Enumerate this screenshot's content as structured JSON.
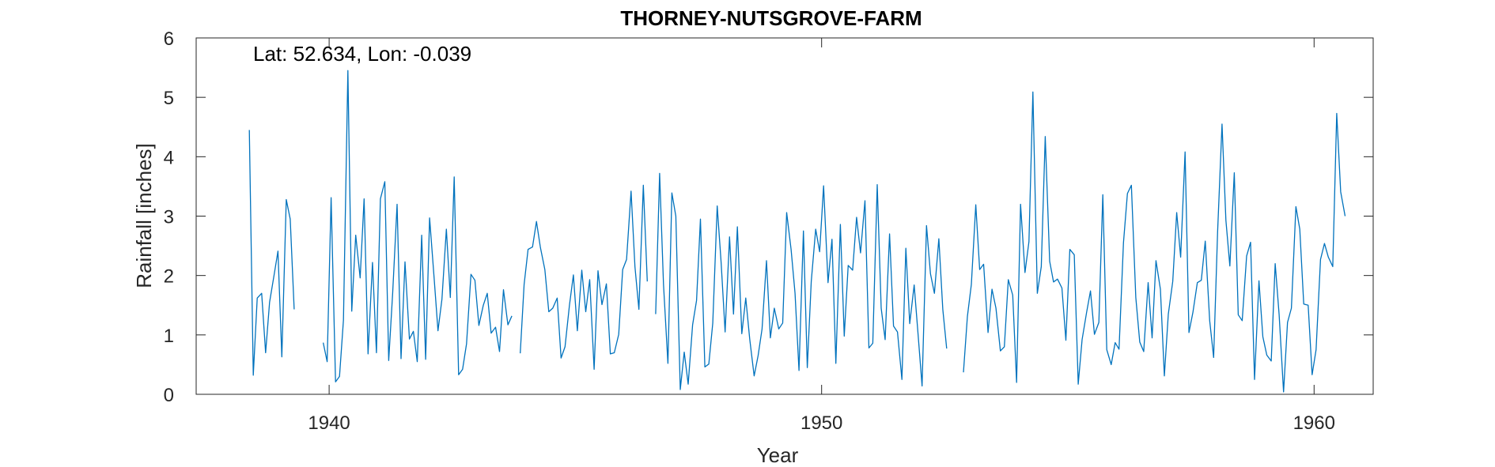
{
  "chart_data": {
    "type": "line",
    "title": "THORNEY-NUTSGROVE-FARM",
    "annotation": "Lat: 52.634, Lon: -0.039",
    "xlabel": "Year",
    "ylabel": "Rainfall [inches]",
    "xlim": [
      1937.3,
      1961.2
    ],
    "ylim": [
      0,
      6
    ],
    "xticks": [
      1940,
      1950,
      1960
    ],
    "yticks": [
      0,
      1,
      2,
      3,
      4,
      5,
      6
    ],
    "grid": false,
    "line_color": "#0072BD",
    "series": [
      {
        "segments": [
          [
            [
              1938.38,
              4.45
            ],
            [
              1938.46,
              0.32
            ],
            [
              1938.54,
              1.62
            ],
            [
              1938.63,
              1.7
            ],
            [
              1938.71,
              0.7
            ],
            [
              1938.79,
              1.55
            ],
            [
              1938.88,
              2.0
            ],
            [
              1938.96,
              2.41
            ],
            [
              1939.04,
              0.63
            ],
            [
              1939.13,
              3.28
            ],
            [
              1939.21,
              2.95
            ],
            [
              1939.29,
              1.43
            ]
          ],
          [
            [
              1939.88,
              0.87
            ],
            [
              1939.96,
              0.55
            ],
            [
              1940.04,
              3.31
            ],
            [
              1940.13,
              0.21
            ],
            [
              1940.21,
              0.3
            ],
            [
              1940.29,
              1.25
            ],
            [
              1940.38,
              5.45
            ],
            [
              1940.46,
              1.4
            ],
            [
              1940.54,
              2.68
            ],
            [
              1940.63,
              1.96
            ],
            [
              1940.71,
              3.29
            ],
            [
              1940.79,
              0.68
            ],
            [
              1940.88,
              2.22
            ],
            [
              1940.96,
              0.7
            ],
            [
              1941.04,
              3.29
            ],
            [
              1941.13,
              3.58
            ],
            [
              1941.21,
              0.57
            ],
            [
              1941.29,
              1.7
            ],
            [
              1941.38,
              3.2
            ],
            [
              1941.46,
              0.6
            ],
            [
              1941.54,
              2.23
            ],
            [
              1941.63,
              0.93
            ],
            [
              1941.71,
              1.06
            ],
            [
              1941.79,
              0.55
            ],
            [
              1941.88,
              2.68
            ],
            [
              1941.96,
              0.59
            ],
            [
              1942.04,
              2.97
            ],
            [
              1942.13,
              1.98
            ],
            [
              1942.21,
              1.07
            ],
            [
              1942.29,
              1.6
            ],
            [
              1942.38,
              2.78
            ],
            [
              1942.46,
              1.63
            ],
            [
              1942.54,
              3.66
            ],
            [
              1942.63,
              0.33
            ],
            [
              1942.71,
              0.42
            ],
            [
              1942.79,
              0.85
            ],
            [
              1942.88,
              2.02
            ],
            [
              1942.96,
              1.92
            ],
            [
              1943.04,
              1.16
            ],
            [
              1943.13,
              1.5
            ],
            [
              1943.21,
              1.7
            ],
            [
              1943.29,
              1.03
            ],
            [
              1943.38,
              1.13
            ],
            [
              1943.46,
              0.72
            ],
            [
              1943.54,
              1.76
            ],
            [
              1943.63,
              1.17
            ],
            [
              1943.71,
              1.32
            ]
          ],
          [
            [
              1943.88,
              0.69
            ],
            [
              1943.96,
              1.85
            ],
            [
              1944.04,
              2.44
            ],
            [
              1944.13,
              2.48
            ],
            [
              1944.21,
              2.91
            ],
            [
              1944.29,
              2.47
            ],
            [
              1944.38,
              2.1
            ],
            [
              1944.46,
              1.39
            ],
            [
              1944.54,
              1.45
            ],
            [
              1944.63,
              1.62
            ],
            [
              1944.71,
              0.61
            ],
            [
              1944.79,
              0.8
            ],
            [
              1944.88,
              1.5
            ],
            [
              1944.96,
              2.01
            ],
            [
              1945.04,
              1.07
            ],
            [
              1945.13,
              2.09
            ],
            [
              1945.21,
              1.39
            ],
            [
              1945.29,
              1.93
            ],
            [
              1945.38,
              0.42
            ],
            [
              1945.46,
              2.08
            ],
            [
              1945.54,
              1.51
            ],
            [
              1945.63,
              1.86
            ],
            [
              1945.71,
              0.68
            ],
            [
              1945.79,
              0.7
            ],
            [
              1945.88,
              1.01
            ],
            [
              1945.96,
              2.1
            ],
            [
              1946.04,
              2.27
            ],
            [
              1946.13,
              3.42
            ],
            [
              1946.21,
              2.15
            ],
            [
              1946.29,
              1.43
            ],
            [
              1946.38,
              3.52
            ],
            [
              1946.46,
              1.9
            ]
          ],
          [
            [
              1946.63,
              1.35
            ],
            [
              1946.71,
              3.72
            ],
            [
              1946.79,
              1.85
            ],
            [
              1946.88,
              0.52
            ],
            [
              1946.96,
              3.39
            ],
            [
              1947.04,
              3.0
            ],
            [
              1947.13,
              0.08
            ],
            [
              1947.21,
              0.71
            ],
            [
              1947.29,
              0.17
            ],
            [
              1947.38,
              1.17
            ],
            [
              1947.46,
              1.58
            ],
            [
              1947.54,
              2.95
            ],
            [
              1947.63,
              0.46
            ],
            [
              1947.71,
              0.51
            ],
            [
              1947.79,
              1.2
            ],
            [
              1947.88,
              3.17
            ],
            [
              1947.96,
              2.21
            ],
            [
              1948.04,
              1.05
            ],
            [
              1948.13,
              2.65
            ],
            [
              1948.21,
              1.35
            ],
            [
              1948.29,
              2.82
            ],
            [
              1948.38,
              1.02
            ],
            [
              1948.46,
              1.62
            ],
            [
              1948.54,
              0.93
            ],
            [
              1948.63,
              0.31
            ],
            [
              1948.71,
              0.65
            ],
            [
              1948.79,
              1.1
            ],
            [
              1948.88,
              2.25
            ],
            [
              1948.96,
              0.95
            ],
            [
              1949.04,
              1.45
            ],
            [
              1949.13,
              1.1
            ],
            [
              1949.21,
              1.2
            ],
            [
              1949.29,
              3.06
            ],
            [
              1949.38,
              2.44
            ],
            [
              1949.46,
              1.7
            ],
            [
              1949.54,
              0.4
            ],
            [
              1949.63,
              2.75
            ],
            [
              1949.71,
              0.45
            ],
            [
              1949.79,
              1.9
            ],
            [
              1949.88,
              2.78
            ],
            [
              1949.96,
              2.4
            ],
            [
              1950.04,
              3.51
            ],
            [
              1950.13,
              1.88
            ],
            [
              1950.21,
              2.61
            ],
            [
              1950.29,
              0.52
            ],
            [
              1950.38,
              2.86
            ],
            [
              1950.46,
              0.98
            ],
            [
              1950.54,
              2.17
            ],
            [
              1950.63,
              2.09
            ],
            [
              1950.71,
              2.98
            ],
            [
              1950.79,
              2.38
            ],
            [
              1950.88,
              3.26
            ],
            [
              1950.96,
              0.78
            ],
            [
              1951.04,
              0.86
            ],
            [
              1951.13,
              3.53
            ],
            [
              1951.21,
              1.45
            ],
            [
              1951.29,
              0.92
            ],
            [
              1951.38,
              2.7
            ],
            [
              1951.46,
              1.15
            ],
            [
              1951.54,
              1.05
            ],
            [
              1951.63,
              0.25
            ],
            [
              1951.71,
              2.46
            ],
            [
              1951.79,
              1.19
            ],
            [
              1951.88,
              1.84
            ],
            [
              1951.96,
              1.0
            ],
            [
              1952.04,
              0.14
            ],
            [
              1952.13,
              2.84
            ],
            [
              1952.21,
              2.03
            ],
            [
              1952.29,
              1.7
            ],
            [
              1952.38,
              2.62
            ],
            [
              1952.46,
              1.43
            ],
            [
              1952.54,
              0.77
            ]
          ],
          [
            [
              1952.88,
              0.37
            ],
            [
              1952.96,
              1.31
            ],
            [
              1953.04,
              1.85
            ],
            [
              1953.13,
              3.19
            ],
            [
              1953.21,
              2.1
            ],
            [
              1953.29,
              2.19
            ],
            [
              1953.38,
              1.04
            ],
            [
              1953.46,
              1.77
            ],
            [
              1953.54,
              1.45
            ],
            [
              1953.63,
              0.73
            ],
            [
              1953.71,
              0.8
            ],
            [
              1953.79,
              1.93
            ],
            [
              1953.88,
              1.67
            ],
            [
              1953.96,
              0.2
            ],
            [
              1954.04,
              3.2
            ],
            [
              1954.13,
              2.05
            ],
            [
              1954.21,
              2.57
            ],
            [
              1954.29,
              5.09
            ],
            [
              1954.38,
              1.7
            ],
            [
              1954.46,
              2.15
            ],
            [
              1954.54,
              4.34
            ],
            [
              1954.63,
              2.24
            ],
            [
              1954.71,
              1.89
            ],
            [
              1954.79,
              1.94
            ],
            [
              1954.88,
              1.79
            ],
            [
              1954.96,
              0.91
            ],
            [
              1955.04,
              2.44
            ],
            [
              1955.13,
              2.35
            ],
            [
              1955.21,
              0.17
            ],
            [
              1955.29,
              0.92
            ],
            [
              1955.38,
              1.38
            ],
            [
              1955.46,
              1.74
            ],
            [
              1955.54,
              1.01
            ],
            [
              1955.63,
              1.21
            ],
            [
              1955.71,
              3.36
            ],
            [
              1955.79,
              0.75
            ],
            [
              1955.88,
              0.5
            ],
            [
              1955.96,
              0.87
            ],
            [
              1956.04,
              0.76
            ],
            [
              1956.13,
              2.55
            ],
            [
              1956.21,
              3.38
            ],
            [
              1956.29,
              3.52
            ],
            [
              1956.38,
              1.63
            ],
            [
              1956.46,
              0.88
            ],
            [
              1956.54,
              0.72
            ],
            [
              1956.63,
              1.88
            ],
            [
              1956.71,
              0.95
            ],
            [
              1956.79,
              2.25
            ],
            [
              1956.88,
              1.77
            ],
            [
              1956.96,
              0.31
            ],
            [
              1957.04,
              1.35
            ],
            [
              1957.13,
              1.9
            ],
            [
              1957.21,
              3.06
            ],
            [
              1957.29,
              2.31
            ],
            [
              1957.38,
              4.08
            ],
            [
              1957.46,
              1.04
            ],
            [
              1957.54,
              1.38
            ],
            [
              1957.63,
              1.88
            ],
            [
              1957.71,
              1.92
            ],
            [
              1957.79,
              2.58
            ],
            [
              1957.88,
              1.24
            ],
            [
              1957.96,
              0.62
            ],
            [
              1958.04,
              2.73
            ],
            [
              1958.13,
              4.55
            ],
            [
              1958.21,
              2.93
            ],
            [
              1958.29,
              2.16
            ],
            [
              1958.38,
              3.73
            ],
            [
              1958.46,
              1.34
            ],
            [
              1958.54,
              1.24
            ],
            [
              1958.63,
              2.33
            ],
            [
              1958.71,
              2.56
            ],
            [
              1958.79,
              0.25
            ],
            [
              1958.88,
              1.91
            ],
            [
              1958.96,
              0.97
            ],
            [
              1959.04,
              0.66
            ],
            [
              1959.13,
              0.56
            ],
            [
              1959.21,
              2.2
            ],
            [
              1959.29,
              1.34
            ],
            [
              1959.38,
              0.04
            ],
            [
              1959.46,
              1.21
            ],
            [
              1959.54,
              1.45
            ],
            [
              1959.63,
              3.16
            ],
            [
              1959.71,
              2.78
            ],
            [
              1959.79,
              1.52
            ],
            [
              1959.88,
              1.5
            ],
            [
              1959.96,
              0.33
            ],
            [
              1960.04,
              0.75
            ],
            [
              1960.13,
              2.27
            ],
            [
              1960.21,
              2.54
            ],
            [
              1960.29,
              2.31
            ],
            [
              1960.38,
              2.15
            ],
            [
              1960.46,
              4.73
            ],
            [
              1960.54,
              3.41
            ],
            [
              1960.63,
              3.0
            ]
          ]
        ]
      }
    ]
  }
}
